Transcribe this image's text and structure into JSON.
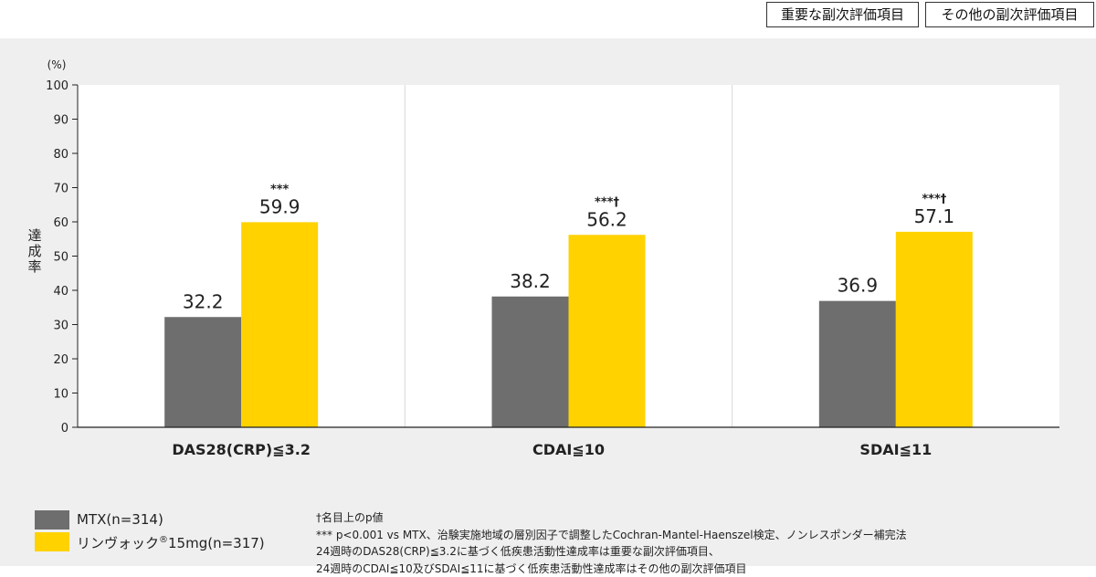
{
  "tabs": [
    {
      "label": "重要な副次評価項目"
    },
    {
      "label": "その他の副次評価項目"
    }
  ],
  "colors": {
    "mtx": "#6e6e6e",
    "rinvoq": "#ffd200",
    "panel_bg": "#efefef"
  },
  "chart_data": {
    "type": "bar",
    "unit_label": "(%)",
    "ylabel": "達成率",
    "ylim": [
      0,
      100
    ],
    "yticks": [
      0,
      10,
      20,
      30,
      40,
      50,
      60,
      70,
      80,
      90,
      100
    ],
    "categories": [
      "DAS28(CRP)≦3.2",
      "CDAI≦10",
      "SDAI≦11"
    ],
    "series": [
      {
        "name": "MTX(n=314)",
        "values": [
          32.2,
          38.2,
          36.9
        ],
        "color": "#6e6e6e"
      },
      {
        "name": "リンヴォック15mg(n=317)",
        "values": [
          59.9,
          56.2,
          57.1
        ],
        "color": "#ffd200"
      }
    ],
    "annotations": [
      "***",
      "***†",
      "***†"
    ],
    "grid": false
  },
  "legend": {
    "mtx": "MTX(n=314)",
    "rinvoq_name": "リンヴォック",
    "rinvoq_reg": "®",
    "rinvoq_rest": "15mg(n=317)"
  },
  "notes": [
    "†名目上のp値",
    "*** p<0.001 vs MTX、治験実施地域の層別因子で調整したCochran-Mantel-Haenszel検定、ノンレスポンダー補完法",
    "24週時のDAS28(CRP)≦3.2に基づく低疾患活動性達成率は重要な副次評価項目、",
    "24週時のCDAI≦10及びSDAI≦11に基づく低疾患活動性達成率はその他の副次評価項目"
  ]
}
